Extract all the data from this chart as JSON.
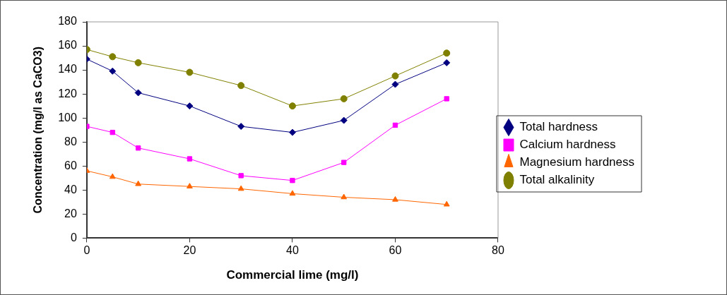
{
  "chart_data": {
    "type": "line",
    "xlabel": "Commercial lime (mg/l)",
    "ylabel": "Concentration (mg/l as CaCO3)",
    "x": [
      0,
      5,
      10,
      20,
      30,
      40,
      50,
      60,
      70
    ],
    "series": [
      {
        "name": "Total hardness",
        "color": "#000080",
        "marker": "diamond",
        "values": [
          149,
          139,
          121,
          110,
          93,
          88,
          98,
          128,
          146
        ]
      },
      {
        "name": "Calcium hardness",
        "color": "#ff00ff",
        "marker": "square",
        "values": [
          93,
          88,
          75,
          66,
          52,
          48,
          63,
          94,
          116
        ]
      },
      {
        "name": "Magnesium hardness",
        "color": "#ff6600",
        "marker": "triangle",
        "values": [
          56,
          51,
          45,
          43,
          41,
          37,
          34,
          32,
          28
        ]
      },
      {
        "name": "Total alkalinity",
        "color": "#808000",
        "marker": "circle",
        "values": [
          157,
          151,
          146,
          138,
          127,
          110,
          116,
          135,
          154
        ]
      }
    ],
    "xlim": [
      0,
      80
    ],
    "xticks": [
      0,
      20,
      40,
      60,
      80
    ],
    "ylim": [
      0,
      180
    ],
    "yticks": [
      0,
      20,
      40,
      60,
      80,
      100,
      120,
      140,
      160,
      180
    ],
    "grid": false,
    "legend": "right",
    "line_style": "solid"
  }
}
